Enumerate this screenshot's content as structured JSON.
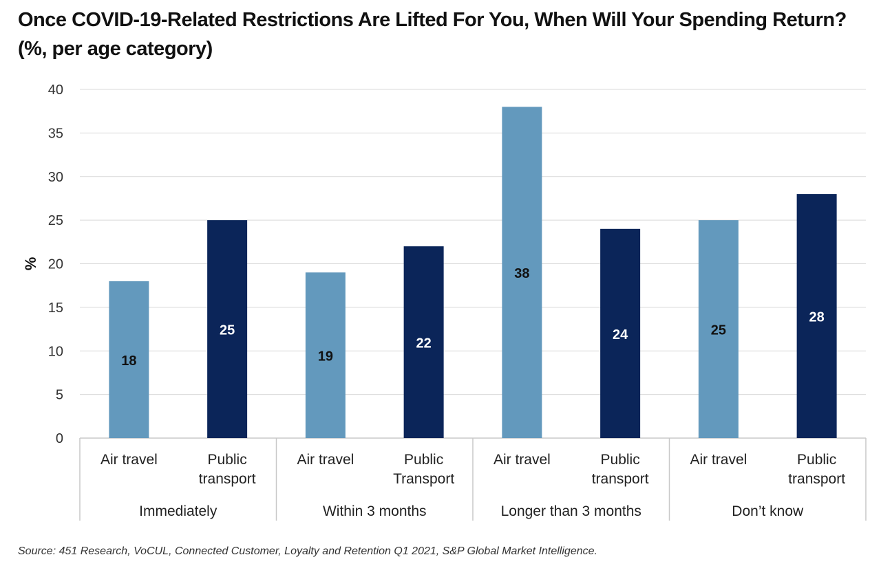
{
  "chart_data": {
    "type": "bar",
    "title": "Once COVID-19-Related Restrictions Are Lifted For You, When Will Your Spending Return? (%, per age category)",
    "ylabel": "%",
    "ylim": [
      0,
      40
    ],
    "yticks": [
      0,
      5,
      10,
      15,
      20,
      25,
      30,
      35,
      40
    ],
    "grid": true,
    "groups": [
      {
        "label": "Immediately",
        "categories": [
          "Air travel",
          "Public transport"
        ],
        "values": [
          18,
          25
        ]
      },
      {
        "label": "Within 3 months",
        "categories": [
          "Air travel",
          "Public Transport"
        ],
        "values": [
          19,
          22
        ]
      },
      {
        "label": "Longer than 3 months",
        "categories": [
          "Air travel",
          "Public transport"
        ],
        "values": [
          38,
          24
        ]
      },
      {
        "label": "Don’t know",
        "categories": [
          "Air travel",
          "Public transport"
        ],
        "values": [
          25,
          28
        ]
      }
    ],
    "colors": [
      "#6399bd",
      "#0b2559"
    ],
    "source": "Source: 451 Research, VoCUL, Connected Customer, Loyalty and Retention Q1 2021, S&P Global Market Intelligence."
  }
}
